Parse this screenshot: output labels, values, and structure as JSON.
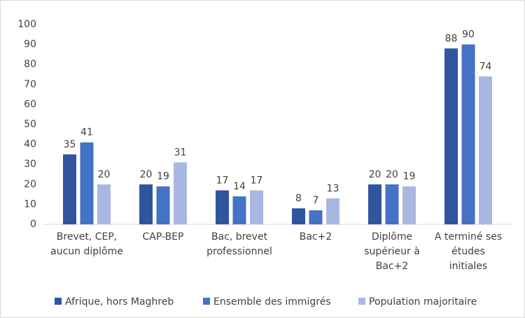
{
  "chart_data": {
    "type": "bar",
    "categories": [
      "Brevet, CEP, aucun diplôme",
      "CAP-BEP",
      "Bac, brevet professionnel",
      "Bac+2",
      "Diplôme supérieur à Bac+2",
      "A terminé ses études initiales"
    ],
    "series": [
      {
        "name": "Afrique, hors Maghreb",
        "color": "#2f55a0",
        "values": [
          35,
          20,
          17,
          8,
          20,
          88
        ]
      },
      {
        "name": "Ensemble des immigrés",
        "color": "#4472c4",
        "values": [
          41,
          19,
          14,
          7,
          20,
          90
        ]
      },
      {
        "name": "Population majoritaire",
        "color": "#a9b8e2",
        "values": [
          20,
          31,
          17,
          13,
          19,
          74
        ]
      }
    ],
    "ylim": [
      0,
      100
    ],
    "yticks": [
      0,
      10,
      20,
      30,
      40,
      50,
      60,
      70,
      80,
      90,
      100
    ],
    "grid": false,
    "legend": "bottom"
  }
}
